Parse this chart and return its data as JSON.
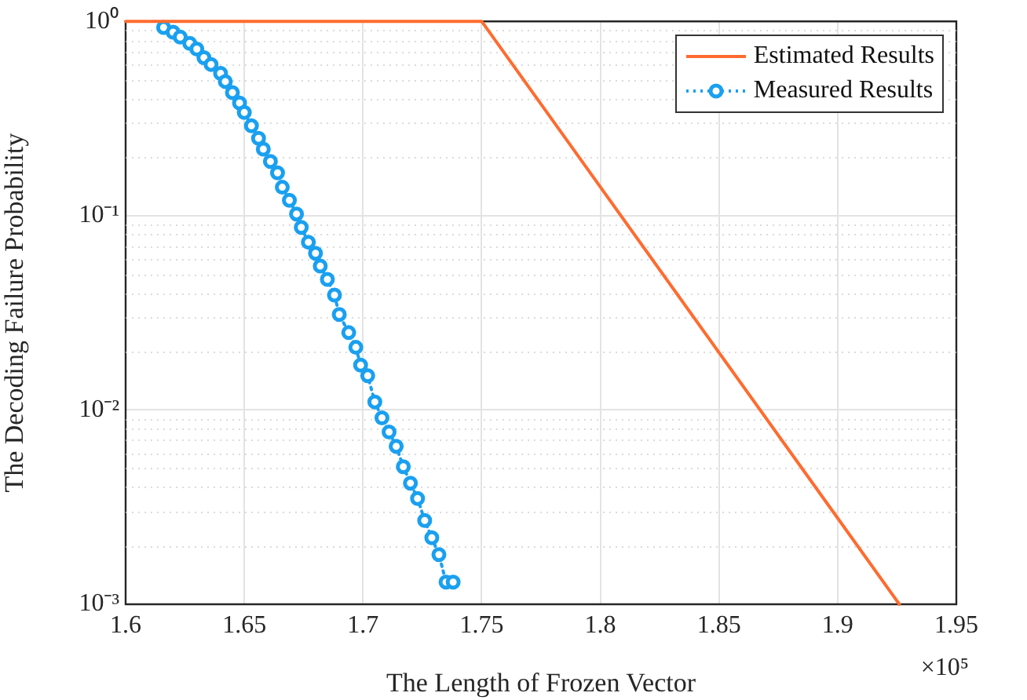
{
  "chart_data": {
    "type": "line",
    "xlabel": "The Length of Frozen Vector",
    "ylabel": "The Decoding Failure Probability",
    "annotations": [
      "×10⁵"
    ],
    "log": "y",
    "grid": true,
    "legend": "top right",
    "xlim": [
      1.6,
      1.95
    ],
    "xticks": [
      1.6,
      1.65,
      1.7,
      1.75,
      1.8,
      1.85,
      1.9,
      1.95
    ],
    "ylim": [
      0.001,
      1
    ],
    "yticks": [
      {
        "value": 0.001,
        "label": "10⁻³"
      },
      {
        "value": 0.01,
        "label": "10⁻²"
      },
      {
        "value": 0.1,
        "label": "10⁻¹"
      },
      {
        "value": 1,
        "label": "10⁰"
      }
    ],
    "series": [
      {
        "name": "Estimated Results",
        "color": "#ff6b2f",
        "marker": "none",
        "line_style": "solid",
        "x": [
          1.6,
          1.75,
          1.926
        ],
        "values": [
          1,
          1,
          0.001
        ]
      },
      {
        "name": "Measured Results",
        "color": "#1aa0f0",
        "marker": "circle",
        "line_style": "dotted",
        "x": [
          1.616,
          1.62,
          1.623,
          1.627,
          1.63,
          1.633,
          1.636,
          1.64,
          1.642,
          1.645,
          1.648,
          1.65,
          1.653,
          1.656,
          1.658,
          1.661,
          1.664,
          1.666,
          1.669,
          1.672,
          1.674,
          1.677,
          1.68,
          1.682,
          1.685,
          1.688,
          1.69,
          1.694,
          1.697,
          1.699,
          1.702,
          1.705,
          1.708,
          1.711,
          1.714,
          1.717,
          1.72,
          1.723,
          1.726,
          1.729,
          1.732,
          1.735,
          1.738
        ],
        "values": [
          0.93,
          0.88,
          0.83,
          0.77,
          0.72,
          0.65,
          0.6,
          0.54,
          0.49,
          0.43,
          0.38,
          0.34,
          0.29,
          0.25,
          0.22,
          0.19,
          0.166,
          0.14,
          0.12,
          0.102,
          0.087,
          0.073,
          0.064,
          0.055,
          0.047,
          0.039,
          0.031,
          0.025,
          0.021,
          0.017,
          0.015,
          0.011,
          0.0091,
          0.0077,
          0.0065,
          0.0051,
          0.0042,
          0.0035,
          0.0027,
          0.0022,
          0.0018,
          0.0013,
          0.0013
        ]
      }
    ]
  }
}
